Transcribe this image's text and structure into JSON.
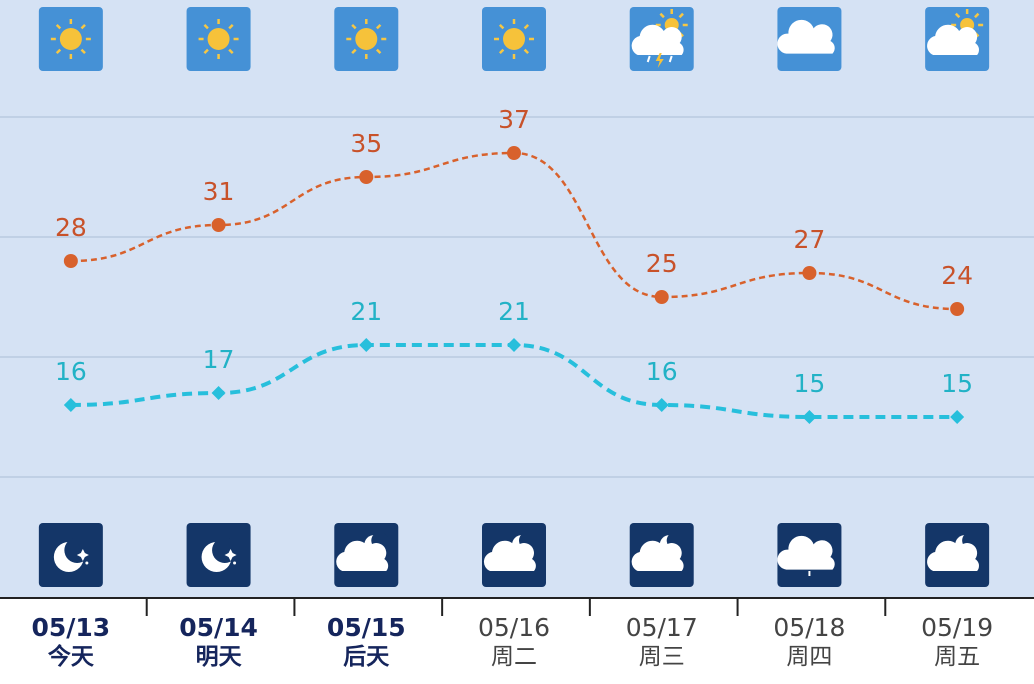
{
  "chart_data": {
    "type": "line",
    "categories": [
      "05/13",
      "05/14",
      "05/15",
      "05/16",
      "05/17",
      "05/18",
      "05/19"
    ],
    "day_labels": [
      "今天",
      "明天",
      "后天",
      "周二",
      "周三",
      "周四",
      "周五"
    ],
    "ylim": [
      0,
      50
    ],
    "series": [
      {
        "color": "#d8612c",
        "values": [
          28,
          31,
          35,
          37,
          25,
          27,
          24
        ]
      },
      {
        "color": "#27bfdc",
        "values": [
          16,
          17,
          21,
          21,
          16,
          15,
          15
        ]
      }
    ]
  }
}
